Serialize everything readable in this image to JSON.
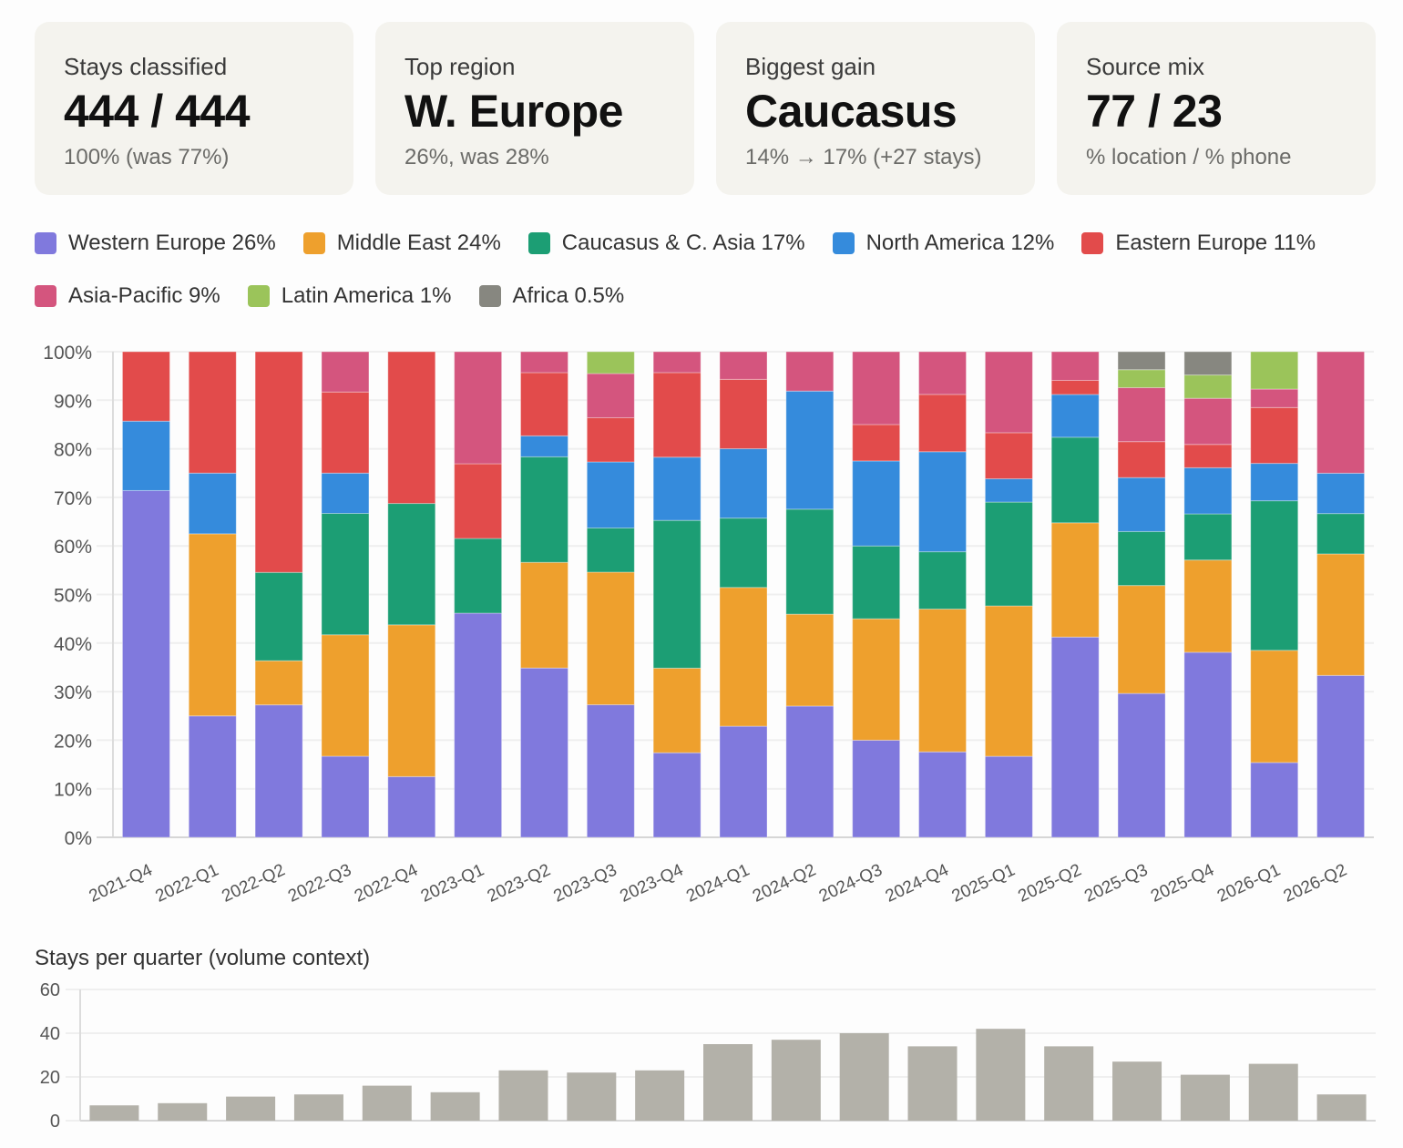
{
  "cards": [
    {
      "label": "Stays classified",
      "value": "444 / 444",
      "sub": "100% (was 77%)"
    },
    {
      "label": "Top region",
      "value": "W. Europe",
      "sub": "26%, was 28%"
    },
    {
      "label": "Biggest gain",
      "value": "Caucasus",
      "sub": "14% → 17% (+27 stays)"
    },
    {
      "label": "Source mix",
      "value": "77 / 23",
      "sub": "% location / % phone"
    }
  ],
  "legend": [
    {
      "label": "Western Europe 26%",
      "color": "#8079dd"
    },
    {
      "label": "Middle East 24%",
      "color": "#eea02d"
    },
    {
      "label": "Caucasus & C. Asia 17%",
      "color": "#1c9e74"
    },
    {
      "label": "North America 12%",
      "color": "#358bdc"
    },
    {
      "label": "Eastern Europe 11%",
      "color": "#e24b4b"
    },
    {
      "label": "Asia-Pacific 9%",
      "color": "#d4557e"
    },
    {
      "label": "Latin America 1%",
      "color": "#9bc45a"
    },
    {
      "label": "Africa 0.5%",
      "color": "#878780"
    }
  ],
  "chart_data": [
    {
      "type": "bar",
      "stacked": true,
      "title": "",
      "xlabel": "",
      "ylabel": "",
      "ylim": [
        0,
        100
      ],
      "y_ticks": [
        "0%",
        "10%",
        "20%",
        "30%",
        "40%",
        "50%",
        "60%",
        "70%",
        "80%",
        "90%",
        "100%"
      ],
      "grid": true,
      "legend_placement": "top",
      "categories": [
        "2021-Q4",
        "2022-Q1",
        "2022-Q2",
        "2022-Q3",
        "2022-Q4",
        "2023-Q1",
        "2023-Q2",
        "2023-Q3",
        "2023-Q4",
        "2024-Q1",
        "2024-Q2",
        "2024-Q3",
        "2024-Q4",
        "2025-Q1",
        "2025-Q2",
        "2025-Q3",
        "2025-Q4",
        "2026-Q1",
        "2026-Q2"
      ],
      "series": [
        {
          "name": "Western Europe",
          "color": "#8079dd",
          "values": [
            71.4,
            25,
            27.3,
            16.7,
            12.5,
            46.2,
            34.8,
            27.3,
            17.4,
            22.9,
            27.0,
            20,
            17.6,
            16.7,
            41.2,
            29.6,
            38.1,
            15.4,
            33.3
          ]
        },
        {
          "name": "Middle East",
          "color": "#eea02d",
          "values": [
            0,
            37.5,
            9.1,
            25,
            31.25,
            0,
            21.7,
            27.3,
            17.4,
            28.6,
            18.9,
            25,
            29.4,
            31.0,
            23.5,
            22.2,
            19.0,
            23.1,
            25
          ]
        },
        {
          "name": "Caucasus & C. Asia",
          "color": "#1c9e74",
          "values": [
            0,
            0,
            18.2,
            25,
            25,
            15.4,
            21.7,
            9.1,
            30.4,
            14.3,
            21.6,
            15,
            11.8,
            21.4,
            17.6,
            11.1,
            9.5,
            30.8,
            8.3
          ]
        },
        {
          "name": "North America",
          "color": "#358bdc",
          "values": [
            14.3,
            12.5,
            0,
            8.3,
            0,
            0,
            4.3,
            13.6,
            13.0,
            14.3,
            24.3,
            17.5,
            20.6,
            4.8,
            8.8,
            11.1,
            9.5,
            7.7,
            8.3
          ]
        },
        {
          "name": "Eastern Europe",
          "color": "#e24b4b",
          "values": [
            14.3,
            25,
            45.5,
            16.7,
            31.25,
            15.4,
            13.0,
            9.1,
            17.4,
            14.3,
            0,
            7.5,
            11.8,
            9.5,
            2.9,
            7.4,
            4.8,
            11.5,
            0
          ]
        },
        {
          "name": "Asia-Pacific",
          "color": "#d4557e",
          "values": [
            0,
            0,
            0,
            8.3,
            0,
            23.1,
            4.3,
            9.1,
            4.3,
            5.7,
            8.1,
            15,
            8.8,
            16.7,
            5.9,
            11.1,
            9.5,
            3.8,
            25
          ]
        },
        {
          "name": "Latin America",
          "color": "#9bc45a",
          "values": [
            0,
            0,
            0,
            0,
            0,
            0,
            0,
            4.5,
            0,
            0,
            0,
            0,
            0,
            0,
            0,
            3.7,
            4.8,
            7.7,
            0
          ]
        },
        {
          "name": "Africa",
          "color": "#878780",
          "values": [
            0,
            0,
            0,
            0,
            0,
            0,
            0,
            0,
            0,
            0,
            0,
            0,
            0,
            0,
            0,
            3.7,
            4.8,
            0,
            0
          ]
        }
      ]
    },
    {
      "type": "bar",
      "title": "Stays per quarter (volume context)",
      "xlabel": "",
      "ylabel": "",
      "ylim": [
        0,
        60
      ],
      "y_ticks": [
        "0",
        "20",
        "40",
        "60"
      ],
      "grid": true,
      "color": "#b3b1a9",
      "categories": [
        "2021-Q4",
        "2022-Q1",
        "2022-Q2",
        "2022-Q3",
        "2022-Q4",
        "2023-Q1",
        "2023-Q2",
        "2023-Q3",
        "2023-Q4",
        "2024-Q1",
        "2024-Q2",
        "2024-Q3",
        "2024-Q4",
        "2025-Q1",
        "2025-Q2",
        "2025-Q3",
        "2025-Q4",
        "2026-Q1",
        "2026-Q2"
      ],
      "values": [
        7,
        8,
        11,
        12,
        16,
        13,
        23,
        22,
        23,
        35,
        37,
        40,
        34,
        42,
        34,
        27,
        21,
        26,
        12
      ]
    }
  ]
}
